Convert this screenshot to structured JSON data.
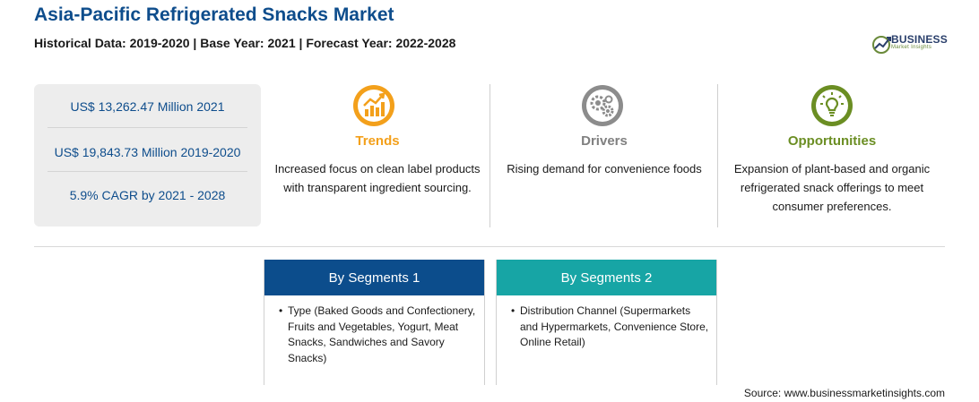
{
  "header": {
    "title": "Asia-Pacific Refrigerated Snacks Market",
    "subtitle": "Historical Data: 2019-2020 | Base Year: 2021 | Forecast Year: 2022-2028"
  },
  "logo": {
    "word": "BUSINESS",
    "sub": "Market Insights"
  },
  "stats": [
    "US$ 13,262.47 Million 2021",
    "US$ 19,843.73 Million 2019-2020",
    "5.9% CAGR by 2021 - 2028"
  ],
  "columns": {
    "trends": {
      "label": "Trends",
      "description": "Increased focus on clean label products with transparent ingredient sourcing.",
      "icon": "trend-chart-icon",
      "color": "#f3a01b"
    },
    "drivers": {
      "label": "Drivers",
      "description": "Rising demand for convenience foods",
      "icon": "gears-icon",
      "color": "#808080"
    },
    "opportunities": {
      "label": "Opportunities",
      "description": "Expansion of plant-based and organic refrigerated snack offerings to meet consumer preferences.",
      "icon": "lightbulb-icon",
      "color": "#6b8e23"
    }
  },
  "segments": [
    {
      "title": "By Segments 1",
      "bullet": "•",
      "text": "Type (Baked Goods and Confectionery, Fruits and Vegetables, Yogurt, Meat Snacks, Sandwiches and Savory Snacks)",
      "color": "#0c4d8c"
    },
    {
      "title": "By Segments 2",
      "bullet": "•",
      "text": "Distribution Channel (Supermarkets and Hypermarkets, Convenience Store, Online Retail)",
      "color": "#17a5a5"
    }
  ],
  "source": "Source: www.businessmarketinsights.com"
}
